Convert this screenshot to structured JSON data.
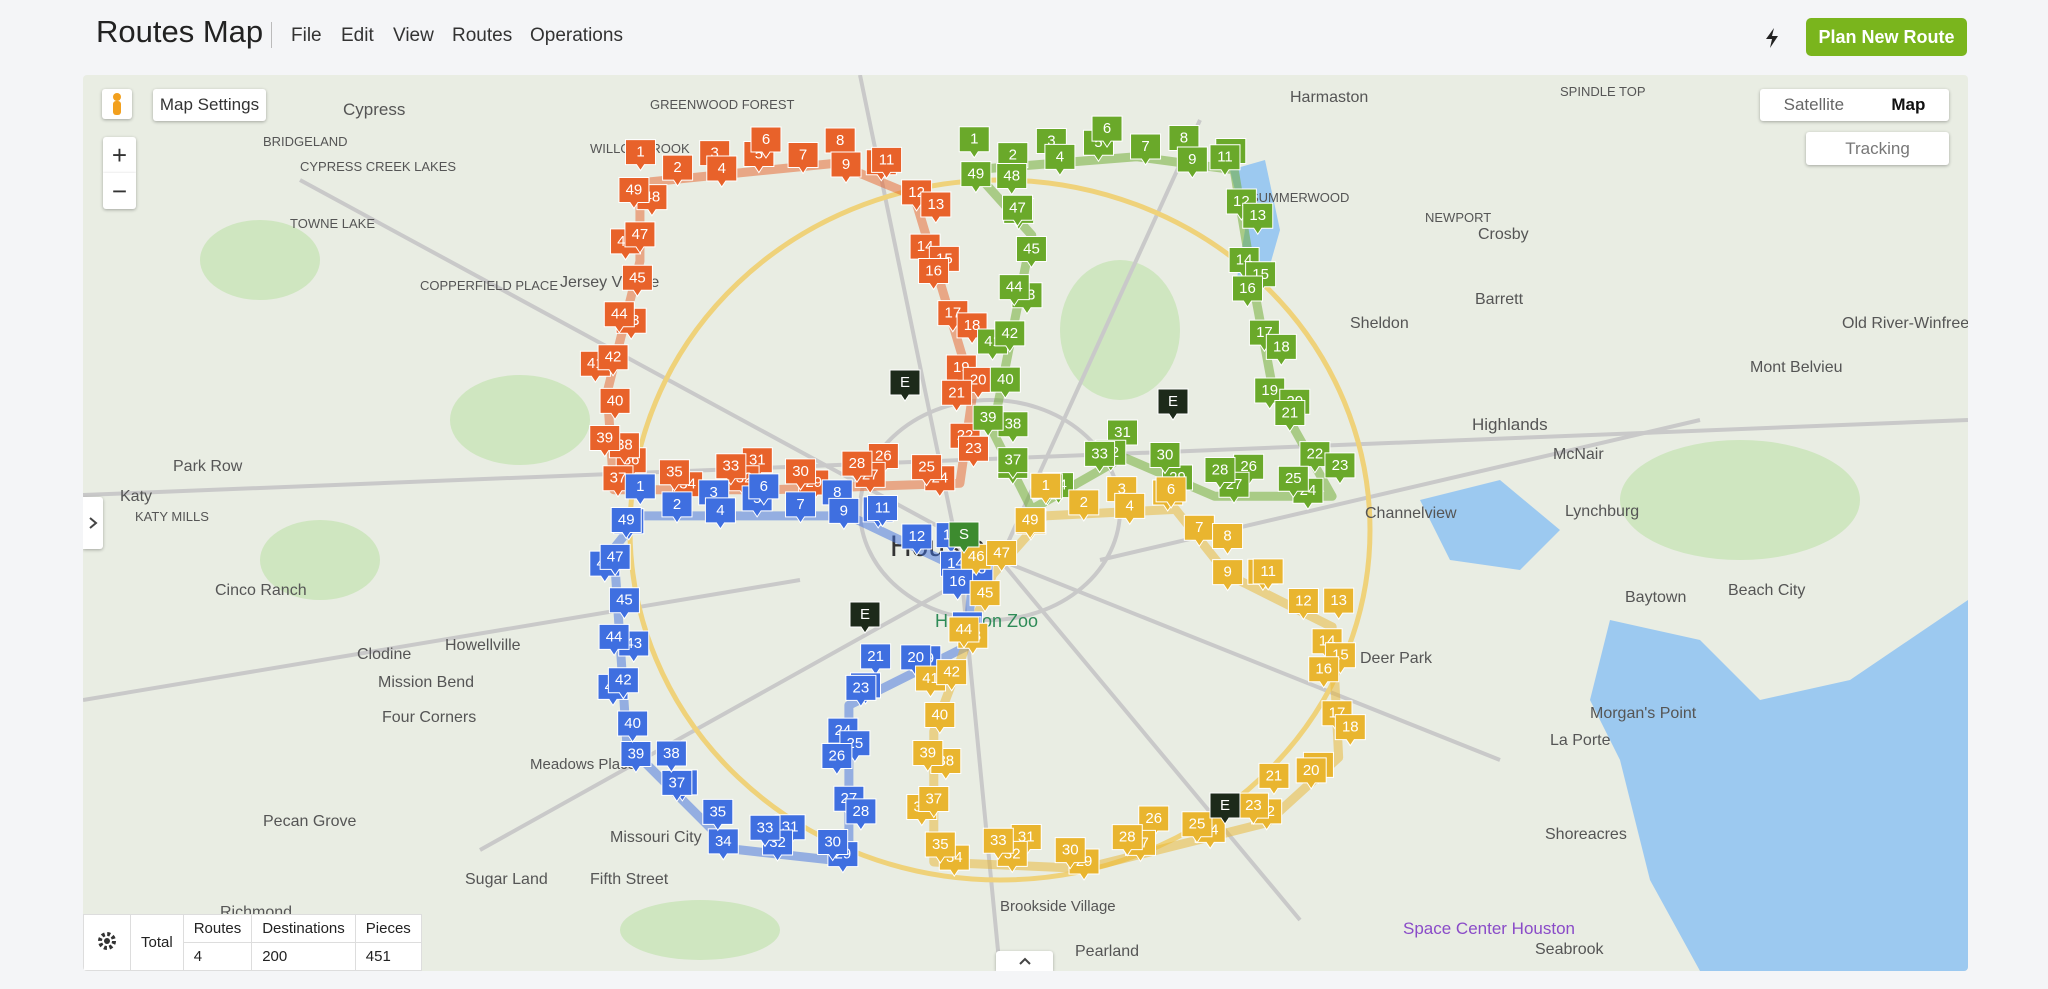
{
  "header": {
    "title": "Routes Map",
    "menu": [
      "File",
      "Edit",
      "View",
      "Routes",
      "Operations"
    ],
    "primary_button": "Plan New Route"
  },
  "map": {
    "controls": {
      "settings": "Map Settings",
      "satellite": "Satellite",
      "map": "Map",
      "tracking": "Tracking",
      "zoom_in": "+",
      "zoom_out": "−"
    },
    "places": [
      "Cypress",
      "BRIDGELAND",
      "CYPRESS CREEK LAKES",
      "TOWNE LAKE",
      "COPPERFIELD PLACE",
      "Jersey Village",
      "GREENWOOD FOREST",
      "WILLOWBROOK",
      "Harmaston",
      "SPINDLE TOP",
      "SUMMERWOOD",
      "NEWPORT",
      "Crosby",
      "Sheldon",
      "Barrett",
      "Old River-Winfree",
      "Mont Belvieu",
      "Highlands",
      "McNair",
      "Channelview",
      "Lynchburg",
      "Park Row",
      "Katy",
      "KATY MILLS",
      "Cinco Ranch",
      "Clodine",
      "Howellville",
      "Mission Bend",
      "Four Corners",
      "Meadows Place",
      "Pecan Grove",
      "Missouri City",
      "Sugar Land",
      "Fifth Street",
      "Brookside Village",
      "Pearland",
      "Deer Park",
      "La Porte",
      "Morgan's Point",
      "Shoreacres",
      "Seabrook",
      "Baytown",
      "Beach City",
      "Space Center Houston",
      "Houston",
      "Houston Zoo",
      "Richmond"
    ],
    "depots": [
      "E",
      "E",
      "E",
      "E",
      "S"
    ],
    "routes": [
      {
        "color": "#e8622a",
        "stops": [
          1,
          2,
          3,
          4,
          5,
          6,
          7,
          8,
          9,
          10,
          11,
          12,
          13,
          14,
          15,
          16,
          17,
          18,
          19,
          20,
          21,
          22,
          23,
          24,
          25,
          26,
          27,
          28,
          29,
          30,
          31,
          32,
          33,
          34,
          35,
          36,
          37,
          38,
          39,
          40,
          41,
          42,
          43,
          44,
          45,
          46,
          47,
          48,
          49
        ]
      },
      {
        "color": "#6aa92a",
        "stops": [
          1,
          2,
          3,
          4,
          5,
          6,
          7,
          8,
          9,
          10,
          11,
          12,
          13,
          14,
          15,
          16,
          17,
          18,
          19,
          20,
          21,
          22,
          23,
          24,
          25,
          26,
          27,
          28,
          29,
          30,
          31,
          32,
          33,
          34,
          35,
          36,
          37,
          38,
          39,
          40,
          41,
          42,
          43,
          44,
          45,
          46,
          47,
          48,
          49
        ]
      },
      {
        "color": "#3f6fe0",
        "stops": [
          1,
          2,
          3,
          4,
          5,
          6,
          7,
          8,
          9,
          10,
          11,
          12,
          13,
          14,
          15,
          16,
          17,
          18,
          19,
          20,
          21,
          22,
          23,
          24,
          25,
          26,
          27,
          28,
          29,
          30,
          31,
          32,
          33,
          34,
          35,
          36,
          37,
          38,
          39,
          40,
          41,
          42,
          43,
          44,
          45,
          46,
          47,
          48,
          49
        ]
      },
      {
        "color": "#e9b52f",
        "stops": [
          1,
          2,
          3,
          4,
          5,
          6,
          7,
          8,
          9,
          10,
          11,
          12,
          13,
          14,
          15,
          16,
          17,
          18,
          19,
          20,
          21,
          22,
          23,
          24,
          25,
          26,
          27,
          28,
          29,
          30,
          31,
          32,
          33,
          34,
          35,
          36,
          37,
          38,
          39,
          40,
          41,
          42,
          43,
          44,
          45,
          46,
          47,
          48,
          49
        ]
      }
    ]
  },
  "summary": {
    "label": "Total",
    "headers": [
      "Routes",
      "Destinations",
      "Pieces"
    ],
    "values": [
      4,
      200,
      451
    ]
  }
}
